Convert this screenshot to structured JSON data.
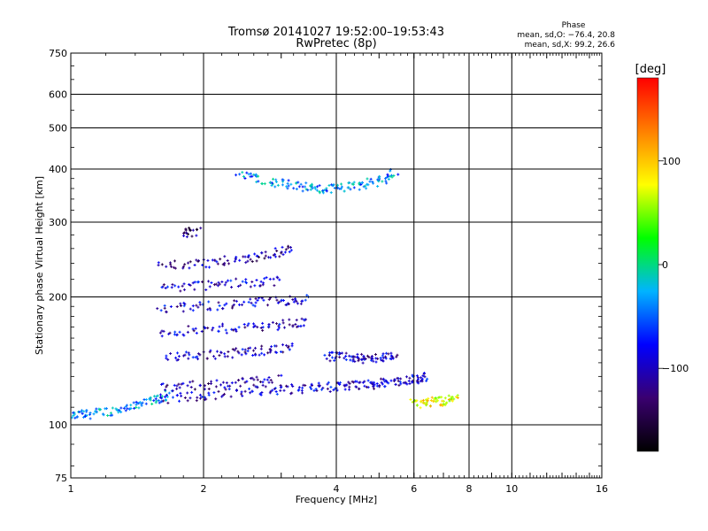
{
  "chart_data": {
    "type": "scatter",
    "title": "Tromsø 20141027 19:52:00–19:53:43",
    "subtitle": "RwPretec (8p)",
    "xlabel": "Frequency [MHz]",
    "ylabel": "Stationary phase Virtual Height [km]",
    "x_scale": "log",
    "y_scale": "log",
    "xlim": [
      1,
      16
    ],
    "ylim": [
      75,
      750
    ],
    "x_ticks": [
      1,
      2,
      4,
      6,
      8,
      10,
      16
    ],
    "x_tick_labels": [
      "1",
      "2",
      "4",
      "6",
      "8",
      "10",
      "16"
    ],
    "y_ticks": [
      75,
      100,
      200,
      300,
      400,
      500,
      600,
      750
    ],
    "y_tick_labels": [
      "75",
      "100",
      "200",
      "300",
      "400",
      "500",
      "600",
      "750"
    ],
    "grid": true,
    "phase_info": {
      "title": "Phase",
      "line_o": "mean, sd,O: −76.4, 20.8",
      "line_x": "mean, sd,X:  99.2, 26.6"
    },
    "colorbar": {
      "label": "[deg]",
      "range": [
        -180,
        180
      ],
      "ticks": [
        100,
        0,
        -100
      ],
      "tick_labels": [
        "100",
        "0",
        "−100"
      ],
      "colormap": [
        "#000000",
        "#3a0070",
        "#0000ff",
        "#00b4ff",
        "#00ff00",
        "#ffff00",
        "#ff8000",
        "#ff0000"
      ]
    },
    "echo_traces": [
      {
        "x": [
          1.0,
          1.1,
          1.25,
          1.4,
          1.55,
          1.7
        ],
        "y": [
          105,
          106,
          108,
          111,
          114,
          118
        ],
        "phase": -35
      },
      {
        "x": [
          1.6,
          2.0,
          2.5,
          3.0,
          3.5,
          4.0,
          4.5,
          5.0,
          5.5,
          6.0,
          6.5
        ],
        "y": [
          115,
          117,
          120,
          121,
          122,
          123,
          124,
          125,
          127,
          128,
          130
        ],
        "phase": -95
      },
      {
        "x": [
          1.6,
          2.0,
          2.5,
          3.0
        ],
        "y": [
          122,
          124,
          126,
          128
        ],
        "phase": -110
      },
      {
        "x": [
          1.65,
          2.0,
          2.4,
          2.8,
          3.2
        ],
        "y": [
          145,
          146,
          148,
          150,
          152
        ],
        "phase": -100
      },
      {
        "x": [
          1.6,
          2.0,
          2.5,
          3.0,
          3.5
        ],
        "y": [
          165,
          167,
          170,
          172,
          175
        ],
        "phase": -100
      },
      {
        "x": [
          1.6,
          2.0,
          2.5,
          3.0,
          3.5
        ],
        "y": [
          187,
          190,
          193,
          196,
          198
        ],
        "phase": -95
      },
      {
        "x": [
          1.6,
          2.0,
          2.5,
          3.0
        ],
        "y": [
          210,
          213,
          216,
          219
        ],
        "phase": -95
      },
      {
        "x": [
          1.6,
          2.0,
          2.4,
          2.8,
          3.2
        ],
        "y": [
          237,
          240,
          245,
          252,
          260
        ],
        "phase": -110
      },
      {
        "x": [
          1.8,
          1.95
        ],
        "y": [
          283,
          284
        ],
        "phase": -130
      },
      {
        "x": [
          2.4,
          2.8,
          3.2,
          3.6,
          4.0,
          4.5,
          5.0,
          5.5
        ],
        "y": [
          390,
          375,
          365,
          358,
          360,
          365,
          375,
          395
        ],
        "phase": -40
      },
      {
        "x": [
          3.8,
          4.2,
          4.6,
          5.0,
          5.5
        ],
        "y": [
          145,
          144,
          143,
          144,
          146
        ],
        "phase": -100
      },
      {
        "x": [
          6.0,
          6.5,
          7.0,
          7.5
        ],
        "y": [
          112,
          113,
          114,
          115
        ],
        "phase": 80
      }
    ]
  }
}
